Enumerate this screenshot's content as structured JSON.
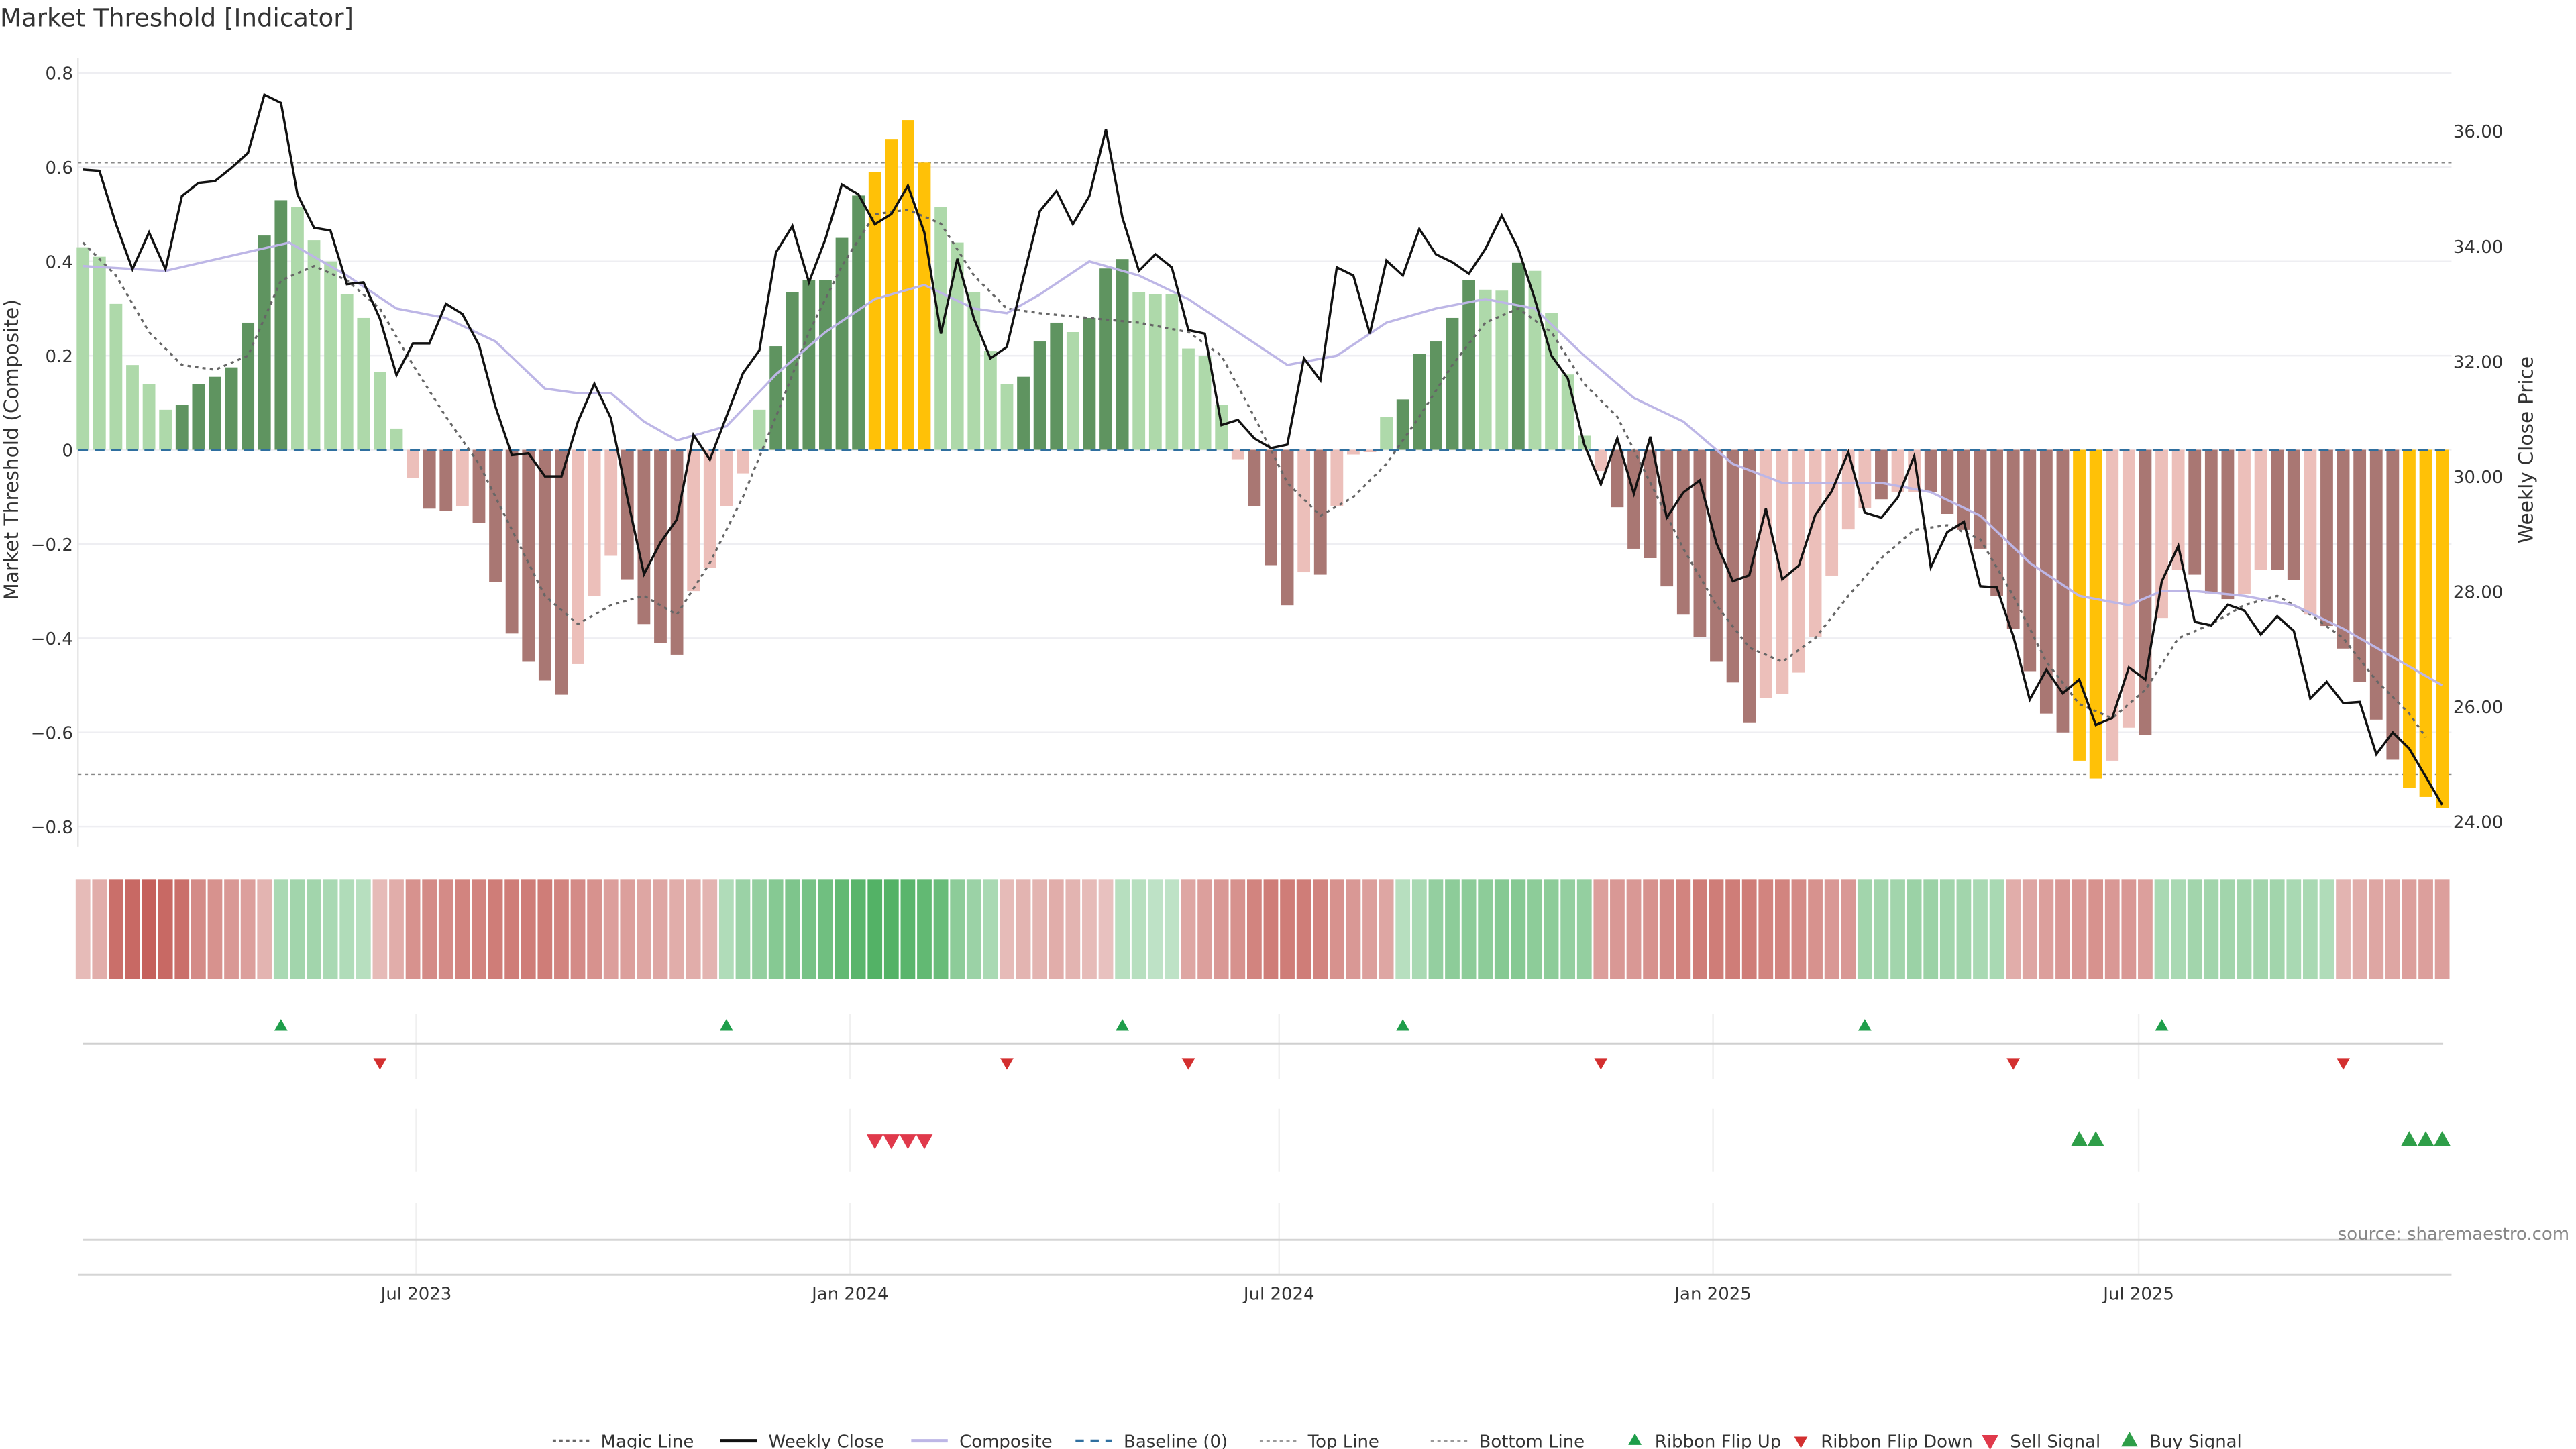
{
  "chart_data": {
    "type": "bar",
    "title": "Market Threshold [Indicator]",
    "ylabel": "Market Threshold (Composite)",
    "y2label": "Weekly Close Price",
    "ylim": [
      -0.82,
      0.84
    ],
    "y2lim": [
      23.6,
      37.3
    ],
    "yticks": [
      0.8,
      0.6,
      0.4,
      0.2,
      0,
      -0.2,
      -0.4,
      -0.6,
      -0.8
    ],
    "ytick_labels": [
      "0.8",
      "0.6",
      "0.4",
      "0.2",
      "0",
      "−0.2",
      "−0.4",
      "−0.6",
      "−0.8"
    ],
    "y2ticks": [
      36,
      34,
      32,
      30,
      28,
      26,
      24
    ],
    "y2tick_labels": [
      "36.00",
      "34.00",
      "32.00",
      "30.00",
      "28.00",
      "26.00",
      "24.00"
    ],
    "x_unit": "week index (0 = first weekly bar, Feb 2023)",
    "n_weeks": 144,
    "xticks": [
      {
        "week": 20.2,
        "label": "Jul 2023"
      },
      {
        "week": 46.5,
        "label": "Jan 2024"
      },
      {
        "week": 72.5,
        "label": "Jul 2024"
      },
      {
        "week": 98.8,
        "label": "Jan 2025"
      },
      {
        "week": 124.6,
        "label": "Jul 2025"
      }
    ],
    "grid": true,
    "top_line": 0.61,
    "bottom_line": -0.69,
    "baseline": 0,
    "bar_type_key": {
      "D": "strong",
      "L": "weak",
      "Y": "extreme"
    },
    "colors": {
      "pos_strong": "#5f9460",
      "pos_weak": "#aed9aa",
      "neg_strong": "#a97773",
      "neg_weak": "#ecbfba",
      "extreme": "#ffc107",
      "close": "#111111",
      "composite": "#bdb6e6",
      "magic": "#666666",
      "baseline": "#2f6f9f",
      "flip_up": "#1e9e4a",
      "flip_down": "#d32f2f",
      "sell": "#e0394b",
      "buy": "#2e9e48"
    },
    "composite_values": [
      0.43,
      0.41,
      0.31,
      0.18,
      0.14,
      0.085,
      0.095,
      0.14,
      0.155,
      0.175,
      0.27,
      0.455,
      0.53,
      0.515,
      0.445,
      0.4,
      0.33,
      0.28,
      0.165,
      0.045,
      -0.06,
      -0.125,
      -0.13,
      -0.12,
      -0.155,
      -0.28,
      -0.39,
      -0.45,
      -0.49,
      -0.52,
      -0.455,
      -0.31,
      -0.225,
      -0.275,
      -0.37,
      -0.41,
      -0.435,
      -0.3,
      -0.25,
      -0.12,
      -0.05,
      0.085,
      0.22,
      0.335,
      0.36,
      0.36,
      0.45,
      0.54,
      0.59,
      0.66,
      0.7,
      0.61,
      0.515,
      0.44,
      0.335,
      0.21,
      0.14,
      0.155,
      0.23,
      0.27,
      0.25,
      0.28,
      0.385,
      0.405,
      0.335,
      0.33,
      0.33,
      0.215,
      0.2,
      0.095,
      -0.02,
      -0.12,
      -0.245,
      -0.33,
      -0.26,
      -0.265,
      -0.12,
      -0.01,
      -0.005,
      0.07,
      0.107,
      0.204,
      0.23,
      0.28,
      0.36,
      0.34,
      0.338,
      0.397,
      0.38,
      0.29,
      0.16,
      0.03,
      -0.045,
      -0.122,
      -0.21,
      -0.23,
      -0.29,
      -0.35,
      -0.397,
      -0.45,
      -0.494,
      -0.58,
      -0.527,
      -0.518,
      -0.473,
      -0.398,
      -0.267,
      -0.169,
      -0.124,
      -0.105,
      -0.09,
      -0.09,
      -0.09,
      -0.136,
      -0.17,
      -0.21,
      -0.31,
      -0.38,
      -0.47,
      -0.56,
      -0.6,
      -0.66,
      -0.698,
      -0.66,
      -0.59,
      -0.605,
      -0.357,
      -0.255,
      -0.265,
      -0.305,
      -0.317,
      -0.306,
      -0.255,
      -0.255,
      -0.276,
      -0.35,
      -0.374,
      -0.422,
      -0.493,
      -0.573,
      -0.658,
      -0.718,
      -0.737,
      -0.76
    ],
    "bar_types": "LLLLLLDDDDDDDLLLLLLLLDDLDDDDDDLLLDDDDLLLLLDDDDDDYYYYLLLLLDDDLDDDLLLLLLLDDDLDLLLLDDDDDLLDLLLLLDDDDDDDDDLLLLLLLDLLDDDDDDDDDYYLLDLLDDDLLDDLDDDDDYYY",
    "weekly_close": [
      35.33,
      35.31,
      34.38,
      33.6,
      34.24,
      33.6,
      34.87,
      35.1,
      35.13,
      35.36,
      35.62,
      36.63,
      36.49,
      34.9,
      34.32,
      34.27,
      33.34,
      33.37,
      32.74,
      31.76,
      32.31,
      32.31,
      33.0,
      32.82,
      32.28,
      31.21,
      30.37,
      30.4,
      30.0,
      30.0,
      30.95,
      31.61,
      31.01,
      29.62,
      28.3,
      28.85,
      29.25,
      30.72,
      30.29,
      31.04,
      31.79,
      32.19,
      33.89,
      34.35,
      33.37,
      34.12,
      35.07,
      34.9,
      34.38,
      34.56,
      35.05,
      34.24,
      32.48,
      33.78,
      32.74,
      32.05,
      32.25,
      33.46,
      34.61,
      34.96,
      34.38,
      34.87,
      36.03,
      34.5,
      33.57,
      33.86,
      33.63,
      32.54,
      32.48,
      30.89,
      30.98,
      30.66,
      30.49,
      30.55,
      32.05,
      31.67,
      33.63,
      33.49,
      32.48,
      33.75,
      33.49,
      34.3,
      33.86,
      33.72,
      33.52,
      33.95,
      34.53,
      33.95,
      33.08,
      32.1,
      31.7,
      30.55,
      29.86,
      30.66,
      29.7,
      30.69,
      29.28,
      29.72,
      29.93,
      28.84,
      28.18,
      28.28,
      29.44,
      28.21,
      28.45,
      29.33,
      29.74,
      30.42,
      29.37,
      29.28,
      29.63,
      30.35,
      28.42,
      29.03,
      29.21,
      28.09,
      28.07,
      27.22,
      26.12,
      26.64,
      26.23,
      26.47,
      25.68,
      25.8,
      26.68,
      26.47,
      28.17,
      28.79,
      27.47,
      27.41,
      27.77,
      27.67,
      27.25,
      27.57,
      27.31,
      26.14,
      26.43,
      26.06,
      26.08,
      25.17,
      25.55,
      25.27,
      24.78,
      24.29
    ],
    "composite_smooth": [
      [
        0,
        0.39
      ],
      [
        5,
        0.38
      ],
      [
        10,
        0.42
      ],
      [
        12.5,
        0.44
      ],
      [
        16,
        0.37
      ],
      [
        19,
        0.3
      ],
      [
        22,
        0.28
      ],
      [
        25,
        0.23
      ],
      [
        28,
        0.13
      ],
      [
        30,
        0.12
      ],
      [
        32,
        0.12
      ],
      [
        34,
        0.06
      ],
      [
        36,
        0.02
      ],
      [
        39,
        0.05
      ],
      [
        42,
        0.16
      ],
      [
        45,
        0.25
      ],
      [
        48,
        0.32
      ],
      [
        51,
        0.35
      ],
      [
        54,
        0.3
      ],
      [
        56,
        0.29
      ],
      [
        58,
        0.33
      ],
      [
        61,
        0.4
      ],
      [
        64,
        0.37
      ],
      [
        67,
        0.32
      ],
      [
        70,
        0.25
      ],
      [
        73,
        0.18
      ],
      [
        76,
        0.2
      ],
      [
        79,
        0.27
      ],
      [
        82,
        0.3
      ],
      [
        85,
        0.32
      ],
      [
        88,
        0.3
      ],
      [
        91,
        0.2
      ],
      [
        94,
        0.11
      ],
      [
        97,
        0.06
      ],
      [
        100,
        -0.03
      ],
      [
        103,
        -0.07
      ],
      [
        106,
        -0.07
      ],
      [
        109,
        -0.07
      ],
      [
        112,
        -0.09
      ],
      [
        115,
        -0.14
      ],
      [
        118,
        -0.24
      ],
      [
        121,
        -0.31
      ],
      [
        124,
        -0.33
      ],
      [
        126,
        -0.3
      ],
      [
        128,
        -0.3
      ],
      [
        131,
        -0.31
      ],
      [
        134,
        -0.33
      ],
      [
        137,
        -0.38
      ],
      [
        140,
        -0.44
      ],
      [
        143,
        -0.5
      ]
    ],
    "magic_line": [
      [
        0,
        0.44
      ],
      [
        2,
        0.37
      ],
      [
        4,
        0.25
      ],
      [
        6,
        0.18
      ],
      [
        8,
        0.17
      ],
      [
        10,
        0.2
      ],
      [
        12,
        0.36
      ],
      [
        14,
        0.39
      ],
      [
        16,
        0.36
      ],
      [
        18,
        0.3
      ],
      [
        20,
        0.18
      ],
      [
        22,
        0.07
      ],
      [
        24,
        -0.03
      ],
      [
        26,
        -0.17
      ],
      [
        28,
        -0.31
      ],
      [
        30,
        -0.37
      ],
      [
        32,
        -0.33
      ],
      [
        34,
        -0.31
      ],
      [
        36,
        -0.35
      ],
      [
        38,
        -0.24
      ],
      [
        40,
        -0.1
      ],
      [
        42,
        0.07
      ],
      [
        44,
        0.25
      ],
      [
        46,
        0.39
      ],
      [
        48,
        0.5
      ],
      [
        50,
        0.51
      ],
      [
        52,
        0.48
      ],
      [
        54,
        0.37
      ],
      [
        56,
        0.3
      ],
      [
        58,
        0.29
      ],
      [
        61,
        0.28
      ],
      [
        64,
        0.27
      ],
      [
        67,
        0.25
      ],
      [
        69,
        0.2
      ],
      [
        71,
        0.07
      ],
      [
        73,
        -0.07
      ],
      [
        75,
        -0.14
      ],
      [
        77,
        -0.1
      ],
      [
        79,
        -0.03
      ],
      [
        81,
        0.07
      ],
      [
        83,
        0.18
      ],
      [
        85,
        0.27
      ],
      [
        87,
        0.3
      ],
      [
        89,
        0.25
      ],
      [
        91,
        0.14
      ],
      [
        93,
        0.07
      ],
      [
        95,
        -0.07
      ],
      [
        97,
        -0.21
      ],
      [
        99,
        -0.33
      ],
      [
        101,
        -0.42
      ],
      [
        103,
        -0.45
      ],
      [
        105,
        -0.4
      ],
      [
        107,
        -0.31
      ],
      [
        109,
        -0.23
      ],
      [
        111,
        -0.17
      ],
      [
        113,
        -0.16
      ],
      [
        115,
        -0.19
      ],
      [
        117,
        -0.31
      ],
      [
        119,
        -0.45
      ],
      [
        121,
        -0.54
      ],
      [
        123,
        -0.57
      ],
      [
        125,
        -0.51
      ],
      [
        127,
        -0.4
      ],
      [
        129,
        -0.37
      ],
      [
        131,
        -0.33
      ],
      [
        133,
        -0.31
      ],
      [
        135,
        -0.35
      ],
      [
        137,
        -0.4
      ],
      [
        139,
        -0.49
      ],
      [
        141,
        -0.56
      ],
      [
        142,
        -0.61
      ]
    ],
    "ribbon": [
      -0.25,
      -0.35,
      -0.8,
      -0.85,
      -0.9,
      -0.85,
      -0.8,
      -0.6,
      -0.55,
      -0.5,
      -0.45,
      -0.3,
      0.35,
      0.4,
      0.4,
      0.35,
      0.3,
      0.25,
      -0.25,
      -0.35,
      -0.55,
      -0.6,
      -0.6,
      -0.65,
      -0.65,
      -0.7,
      -0.7,
      -0.7,
      -0.7,
      -0.65,
      -0.6,
      -0.55,
      -0.45,
      -0.45,
      -0.4,
      -0.4,
      -0.35,
      -0.35,
      -0.3,
      0.3,
      0.45,
      0.5,
      0.6,
      0.65,
      0.7,
      0.75,
      0.85,
      0.9,
      0.95,
      0.95,
      0.9,
      0.85,
      0.8,
      0.55,
      0.45,
      0.35,
      -0.25,
      -0.3,
      -0.3,
      -0.35,
      -0.3,
      -0.25,
      -0.2,
      0.25,
      0.25,
      0.2,
      0.2,
      -0.4,
      -0.45,
      -0.5,
      -0.55,
      -0.65,
      -0.7,
      -0.7,
      -0.7,
      -0.65,
      -0.55,
      -0.5,
      -0.45,
      -0.4,
      0.25,
      0.35,
      0.5,
      0.55,
      0.55,
      0.55,
      0.6,
      0.6,
      0.55,
      0.55,
      0.5,
      0.5,
      -0.45,
      -0.5,
      -0.5,
      -0.55,
      -0.6,
      -0.65,
      -0.7,
      -0.7,
      -0.7,
      -0.7,
      -0.65,
      -0.65,
      -0.6,
      -0.55,
      -0.5,
      -0.5,
      0.4,
      0.4,
      0.4,
      0.45,
      0.45,
      0.4,
      0.4,
      0.35,
      0.35,
      -0.35,
      -0.4,
      -0.45,
      -0.5,
      -0.5,
      -0.55,
      -0.5,
      -0.5,
      -0.45,
      0.35,
      0.35,
      0.4,
      0.4,
      0.4,
      0.4,
      0.4,
      0.4,
      0.35,
      0.35,
      0.3,
      -0.3,
      -0.35,
      -0.4,
      -0.4,
      -0.45,
      -0.45,
      -0.45
    ],
    "ribbon_flip_up": [
      12,
      39,
      63,
      80,
      108,
      126
    ],
    "ribbon_flip_down": [
      18,
      56,
      67,
      92,
      117,
      137
    ],
    "sell_signals": [
      48,
      49,
      50,
      51
    ],
    "buy_signals": [
      121,
      122,
      141,
      142,
      143
    ],
    "legend": [
      {
        "label": "Magic Line",
        "marker": "dotted"
      },
      {
        "label": "Weekly Close",
        "marker": "solid-black"
      },
      {
        "label": "Composite",
        "marker": "solid-lavender"
      },
      {
        "label": "Baseline (0)",
        "marker": "dashed-blue"
      },
      {
        "label": "Top Line",
        "marker": "dotted-light"
      },
      {
        "label": "Bottom Line",
        "marker": "dotted-light"
      },
      {
        "label": "Ribbon Flip Up",
        "marker": "triangle-up-small"
      },
      {
        "label": "Ribbon Flip Down",
        "marker": "triangle-down-small"
      },
      {
        "label": "Sell Signal",
        "marker": "triangle-down"
      },
      {
        "label": "Buy Signal",
        "marker": "triangle-up"
      }
    ],
    "legend_position": "bottom",
    "source": "source: sharemaestro.com"
  }
}
